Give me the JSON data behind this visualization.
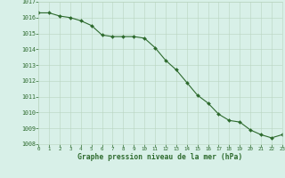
{
  "hours": [
    0,
    1,
    2,
    3,
    4,
    5,
    6,
    7,
    8,
    9,
    10,
    11,
    12,
    13,
    14,
    15,
    16,
    17,
    18,
    19,
    20,
    21,
    22,
    23
  ],
  "pressure": [
    1016.3,
    1016.3,
    1016.1,
    1016.0,
    1015.8,
    1015.5,
    1014.9,
    1014.8,
    1014.8,
    1014.8,
    1014.7,
    1014.1,
    1013.3,
    1012.7,
    1011.9,
    1011.1,
    1010.6,
    1009.9,
    1009.5,
    1009.4,
    1008.9,
    1008.6,
    1008.4,
    1008.6
  ],
  "line_color": "#2d6a2d",
  "marker": "D",
  "marker_size": 2.0,
  "bg_color": "#d8f0e8",
  "grid_color": "#b8d4c0",
  "xlabel": "Graphe pression niveau de la mer (hPa)",
  "xlabel_color": "#2d6a2d",
  "tick_color": "#2d6a2d",
  "ylim": [
    1008,
    1017
  ],
  "yticks": [
    1008,
    1009,
    1010,
    1011,
    1012,
    1013,
    1014,
    1015,
    1016,
    1017
  ],
  "xticks": [
    0,
    1,
    2,
    3,
    4,
    5,
    6,
    7,
    8,
    9,
    10,
    11,
    12,
    13,
    14,
    15,
    16,
    17,
    18,
    19,
    20,
    21,
    22,
    23
  ]
}
